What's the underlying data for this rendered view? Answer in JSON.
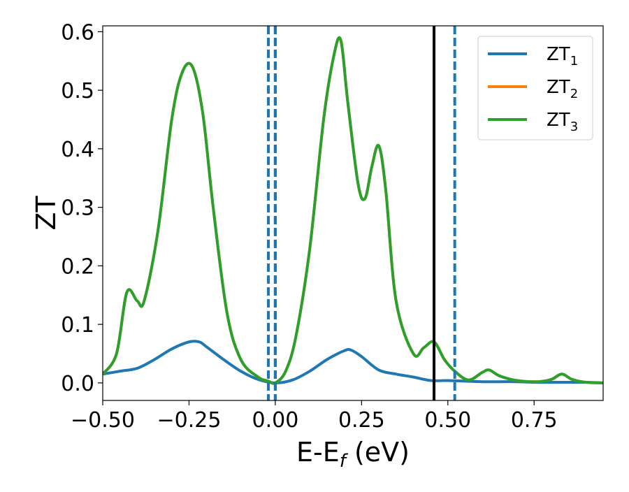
{
  "chart_data": {
    "type": "line",
    "title": "",
    "xlabel": "E-E",
    "xlabel_sub": "f",
    "xlabel_unit": " (eV)",
    "ylabel": "ZT",
    "xlim": [
      -0.5,
      0.95
    ],
    "ylim": [
      -0.03,
      0.61
    ],
    "xticks": [
      -0.5,
      -0.25,
      0.0,
      0.25,
      0.5,
      0.75
    ],
    "xtick_labels": [
      "−0.50",
      "−0.25",
      "0.00",
      "0.25",
      "0.50",
      "0.75"
    ],
    "yticks": [
      0.0,
      0.1,
      0.2,
      0.3,
      0.4,
      0.5,
      0.6
    ],
    "ytick_labels": [
      "0.0",
      "0.1",
      "0.2",
      "0.3",
      "0.4",
      "0.5",
      "0.6"
    ],
    "grid": false,
    "legend_position": "top-right",
    "series": [
      {
        "name": "ZT",
        "name_sub": "1",
        "color": "#1f77b4",
        "x": [
          -0.5,
          -0.45,
          -0.4,
          -0.35,
          -0.3,
          -0.25,
          -0.22,
          -0.2,
          -0.15,
          -0.1,
          -0.05,
          0.0,
          0.05,
          0.1,
          0.15,
          0.2,
          0.22,
          0.25,
          0.3,
          0.35,
          0.4,
          0.45,
          0.5,
          0.55,
          0.6,
          0.65,
          0.7,
          0.75,
          0.8,
          0.85,
          0.9,
          0.95
        ],
        "y": [
          0.015,
          0.02,
          0.025,
          0.04,
          0.058,
          0.07,
          0.07,
          0.062,
          0.04,
          0.02,
          0.006,
          0.0,
          0.005,
          0.02,
          0.04,
          0.055,
          0.056,
          0.045,
          0.022,
          0.015,
          0.01,
          0.004,
          0.004,
          0.003,
          0.002,
          0.002,
          0.002,
          0.001,
          0.001,
          0.001,
          0.001,
          0.0
        ]
      },
      {
        "name": "ZT",
        "name_sub": "2",
        "color": "#ff7f0e",
        "x": [
          -0.5,
          -0.46,
          -0.43,
          -0.4,
          -0.38,
          -0.34,
          -0.3,
          -0.27,
          -0.24,
          -0.21,
          -0.18,
          -0.14,
          -0.1,
          -0.05,
          -0.02,
          0.0,
          0.03,
          0.06,
          0.1,
          0.14,
          0.17,
          0.19,
          0.21,
          0.24,
          0.26,
          0.28,
          0.3,
          0.32,
          0.35,
          0.4,
          0.43,
          0.46,
          0.49,
          0.52,
          0.56,
          0.6,
          0.62,
          0.65,
          0.7,
          0.76,
          0.8,
          0.83,
          0.86,
          0.9,
          0.95
        ],
        "y": [
          0.015,
          0.05,
          0.155,
          0.14,
          0.14,
          0.26,
          0.45,
          0.53,
          0.54,
          0.46,
          0.3,
          0.12,
          0.04,
          0.01,
          0.003,
          0.0,
          0.02,
          0.08,
          0.23,
          0.45,
          0.56,
          0.585,
          0.48,
          0.34,
          0.315,
          0.37,
          0.405,
          0.33,
          0.14,
          0.05,
          0.06,
          0.07,
          0.04,
          0.02,
          0.005,
          0.018,
          0.022,
          0.012,
          0.004,
          0.002,
          0.006,
          0.015,
          0.006,
          0.001,
          0.0
        ]
      },
      {
        "name": "ZT",
        "name_sub": "3",
        "color": "#2ca02c",
        "x": [
          -0.5,
          -0.46,
          -0.43,
          -0.4,
          -0.38,
          -0.34,
          -0.3,
          -0.27,
          -0.24,
          -0.21,
          -0.18,
          -0.14,
          -0.1,
          -0.05,
          -0.02,
          0.0,
          0.03,
          0.06,
          0.1,
          0.14,
          0.17,
          0.19,
          0.21,
          0.24,
          0.26,
          0.28,
          0.3,
          0.32,
          0.35,
          0.4,
          0.43,
          0.46,
          0.49,
          0.52,
          0.56,
          0.6,
          0.62,
          0.65,
          0.7,
          0.76,
          0.8,
          0.83,
          0.86,
          0.9,
          0.95
        ],
        "y": [
          0.015,
          0.05,
          0.155,
          0.14,
          0.14,
          0.26,
          0.45,
          0.53,
          0.54,
          0.46,
          0.3,
          0.12,
          0.04,
          0.01,
          0.003,
          0.0,
          0.02,
          0.08,
          0.23,
          0.45,
          0.56,
          0.585,
          0.48,
          0.34,
          0.315,
          0.37,
          0.405,
          0.33,
          0.14,
          0.05,
          0.06,
          0.07,
          0.04,
          0.02,
          0.005,
          0.018,
          0.022,
          0.012,
          0.004,
          0.002,
          0.006,
          0.015,
          0.006,
          0.001,
          0.0
        ]
      }
    ],
    "vertical_lines": [
      {
        "x": -0.02,
        "color": "#1f77b4",
        "style": "dashed"
      },
      {
        "x": 0.0,
        "color": "#000000",
        "style": "dashed"
      },
      {
        "x": 0.0,
        "color": "#1f77b4",
        "style": "dashed"
      },
      {
        "x": 0.46,
        "color": "#000000",
        "style": "solid"
      },
      {
        "x": 0.52,
        "color": "#1f77b4",
        "style": "dashed"
      }
    ]
  }
}
